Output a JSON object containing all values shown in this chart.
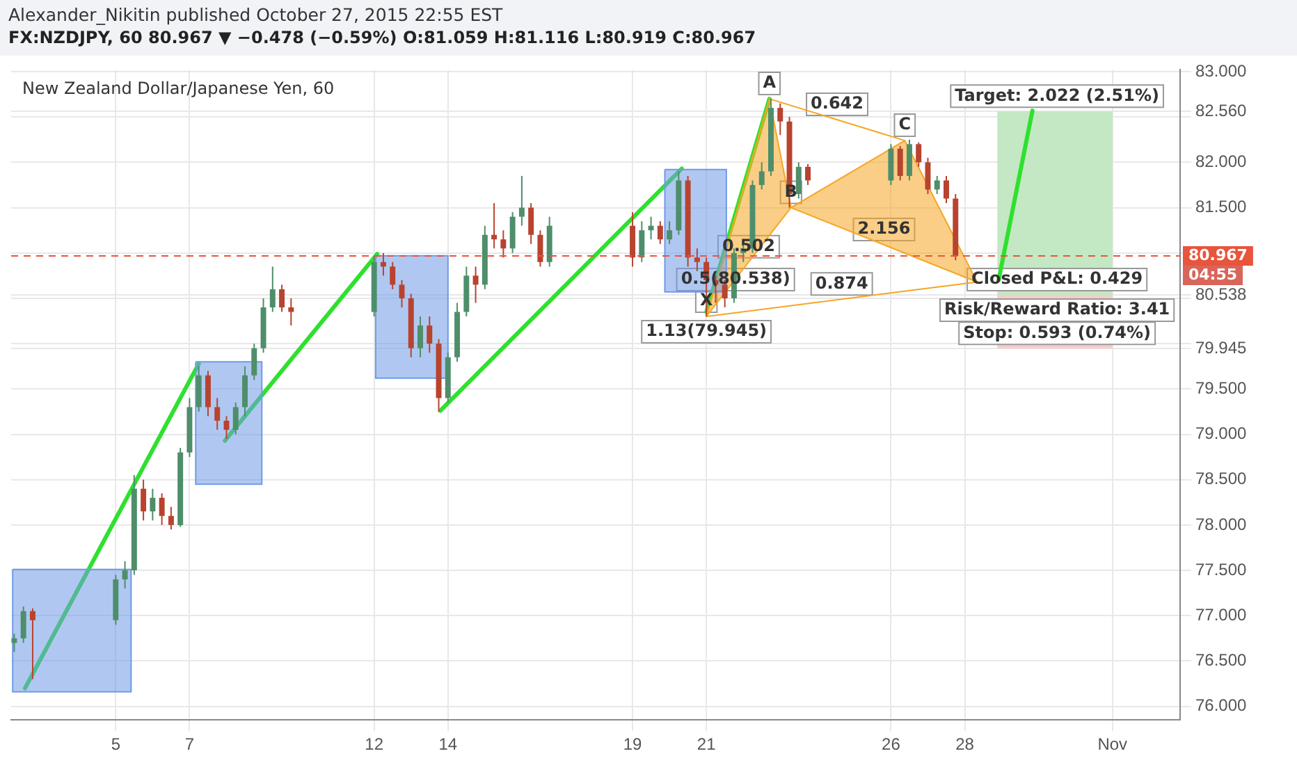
{
  "chart_data": {
    "type": "candlestick",
    "title": "Alexander_Nikitin published October 27, 2015 22:55 EST",
    "subtitle": "FX:NZDJPY, 60  80.967 ▼ −0.478 (−0.59%)  O:81.059 H:81.116 L:80.919 C:80.967",
    "xlim": [
      "2015-10-02T04:00",
      "2015-11-02T20:00"
    ],
    "xticks": [
      {
        "value": "2015-10-05",
        "label": "5"
      },
      {
        "value": "2015-10-07",
        "label": "7"
      },
      {
        "value": "2015-10-12",
        "label": "12"
      },
      {
        "value": "2015-10-14",
        "label": "14"
      },
      {
        "value": "2015-10-19",
        "label": "19"
      },
      {
        "value": "2015-10-21",
        "label": "21"
      },
      {
        "value": "2015-10-26",
        "label": "26"
      },
      {
        "value": "2015-10-28",
        "label": "28"
      },
      {
        "value": "2015-11-01",
        "label": "Nov"
      }
    ],
    "ylim": [
      75.85,
      83.02
    ],
    "yticks": [
      {
        "value": 76,
        "label": "76.000"
      },
      {
        "value": 76.5,
        "label": "76.500"
      },
      {
        "value": 77,
        "label": "77.000"
      },
      {
        "value": 77.5,
        "label": "77.500"
      },
      {
        "value": 78,
        "label": "78.000"
      },
      {
        "value": 78.5,
        "label": "78.500"
      },
      {
        "value": 79,
        "label": "79.000"
      },
      {
        "value": 79.5,
        "label": "79.500"
      },
      {
        "value": 79.945,
        "label": "79.945"
      },
      {
        "value": 80,
        "label": null
      },
      {
        "value": 80.5,
        "label": null
      },
      {
        "value": 80.538,
        "label": "80.538"
      },
      {
        "value": 81,
        "label": null
      },
      {
        "value": 81.5,
        "label": "81.500"
      },
      {
        "value": 82,
        "label": "82.000"
      },
      {
        "value": 82.5,
        "label": null
      },
      {
        "value": 82.56,
        "label": "82.560"
      },
      {
        "value": 83,
        "label": "83.000"
      }
    ],
    "grid": true,
    "series": [
      {
        "type": "candlestick",
        "x": [
          "2015-10-02T06:00",
          "2015-10-02T12:00",
          "2015-10-02T18:00",
          "2015-10-05T00:00",
          "2015-10-05T06:00",
          "2015-10-05T12:00",
          "2015-10-05T18:00",
          "2015-10-06T00:00",
          "2015-10-06T06:00",
          "2015-10-06T12:00",
          "2015-10-06T18:00",
          "2015-10-07T00:00",
          "2015-10-07T06:00",
          "2015-10-07T12:00",
          "2015-10-07T18:00",
          "2015-10-08T00:00",
          "2015-10-08T06:00",
          "2015-10-08T12:00",
          "2015-10-08T18:00",
          "2015-10-09T00:00",
          "2015-10-09T06:00",
          "2015-10-09T12:00",
          "2015-10-09T18:00",
          "2015-10-12T00:00",
          "2015-10-12T06:00",
          "2015-10-12T12:00",
          "2015-10-12T18:00",
          "2015-10-13T00:00",
          "2015-10-13T06:00",
          "2015-10-13T12:00",
          "2015-10-13T18:00",
          "2015-10-14T00:00",
          "2015-10-14T06:00",
          "2015-10-14T12:00",
          "2015-10-14T18:00",
          "2015-10-15T00:00",
          "2015-10-15T06:00",
          "2015-10-15T12:00",
          "2015-10-15T18:00",
          "2015-10-16T00:00",
          "2015-10-16T06:00",
          "2015-10-16T12:00",
          "2015-10-16T18:00",
          "2015-10-19T00:00",
          "2015-10-19T06:00",
          "2015-10-19T12:00",
          "2015-10-19T18:00",
          "2015-10-20T00:00",
          "2015-10-20T06:00",
          "2015-10-20T12:00",
          "2015-10-20T18:00",
          "2015-10-21T00:00",
          "2015-10-21T06:00",
          "2015-10-21T12:00",
          "2015-10-21T18:00",
          "2015-10-22T00:00",
          "2015-10-22T06:00",
          "2015-10-22T12:00",
          "2015-10-22T18:00",
          "2015-10-23T00:00",
          "2015-10-23T06:00",
          "2015-10-23T12:00",
          "2015-10-23T18:00",
          "2015-10-26T00:00",
          "2015-10-26T06:00",
          "2015-10-26T12:00",
          "2015-10-26T18:00",
          "2015-10-27T00:00",
          "2015-10-27T06:00",
          "2015-10-27T12:00",
          "2015-10-27T18:00"
        ],
        "ohlc": [
          [
            76.7,
            76.8,
            76.6,
            76.75
          ],
          [
            76.75,
            77.1,
            76.7,
            77.05
          ],
          [
            77.05,
            77.08,
            76.3,
            76.95
          ],
          [
            76.95,
            77.45,
            76.9,
            77.4
          ],
          [
            77.4,
            77.6,
            77.3,
            77.5
          ],
          [
            77.5,
            78.55,
            77.45,
            78.4
          ],
          [
            78.4,
            78.5,
            78.05,
            78.15
          ],
          [
            78.15,
            78.4,
            78.05,
            78.3
          ],
          [
            78.3,
            78.35,
            78.0,
            78.1
          ],
          [
            78.1,
            78.2,
            77.95,
            78.0
          ],
          [
            78.0,
            78.85,
            77.98,
            78.8
          ],
          [
            78.8,
            79.4,
            78.75,
            79.3
          ],
          [
            79.3,
            79.75,
            79.25,
            79.65
          ],
          [
            79.65,
            79.7,
            79.2,
            79.3
          ],
          [
            79.3,
            79.4,
            79.05,
            79.15
          ],
          [
            79.15,
            79.2,
            78.95,
            79.05
          ],
          [
            79.05,
            79.35,
            79.0,
            79.3
          ],
          [
            79.3,
            79.75,
            79.2,
            79.65
          ],
          [
            79.65,
            80.0,
            79.6,
            79.95
          ],
          [
            79.95,
            80.5,
            79.9,
            80.4
          ],
          [
            80.4,
            80.85,
            80.35,
            80.6
          ],
          [
            80.6,
            80.65,
            80.35,
            80.4
          ],
          [
            80.4,
            80.5,
            80.2,
            80.35
          ],
          [
            80.35,
            80.97,
            80.3,
            80.9
          ],
          [
            80.9,
            81.0,
            80.75,
            80.85
          ],
          [
            80.85,
            80.9,
            80.6,
            80.65
          ],
          [
            80.65,
            80.7,
            80.4,
            80.5
          ],
          [
            80.5,
            80.55,
            79.85,
            79.95
          ],
          [
            79.95,
            80.3,
            79.85,
            80.2
          ],
          [
            80.2,
            80.3,
            79.9,
            80.0
          ],
          [
            80.0,
            80.05,
            79.25,
            79.4
          ],
          [
            79.4,
            79.9,
            79.35,
            79.85
          ],
          [
            79.85,
            80.45,
            79.8,
            80.35
          ],
          [
            80.35,
            80.85,
            80.3,
            80.75
          ],
          [
            80.75,
            80.85,
            80.45,
            80.65
          ],
          [
            80.65,
            81.3,
            80.6,
            81.2
          ],
          [
            81.2,
            81.55,
            81.05,
            81.15
          ],
          [
            81.15,
            81.25,
            80.95,
            81.05
          ],
          [
            81.05,
            81.45,
            81.0,
            81.4
          ],
          [
            81.4,
            81.85,
            81.3,
            81.5
          ],
          [
            81.5,
            81.55,
            81.1,
            81.2
          ],
          [
            81.2,
            81.25,
            80.85,
            80.9
          ],
          [
            80.9,
            81.4,
            80.85,
            81.3
          ],
          [
            81.3,
            81.45,
            80.85,
            80.95
          ],
          [
            80.95,
            81.35,
            80.9,
            81.25
          ],
          [
            81.25,
            81.4,
            81.15,
            81.3
          ],
          [
            81.3,
            81.35,
            81.1,
            81.15
          ],
          [
            81.15,
            81.35,
            81.1,
            81.25
          ],
          [
            81.25,
            81.9,
            81.2,
            81.8
          ],
          [
            81.8,
            81.85,
            80.85,
            80.95
          ],
          [
            80.95,
            81.05,
            80.8,
            80.9
          ],
          [
            80.9,
            80.95,
            80.3,
            80.7
          ],
          [
            80.7,
            80.75,
            80.45,
            80.65
          ],
          [
            80.65,
            80.7,
            80.4,
            80.5
          ],
          [
            80.5,
            81.05,
            80.45,
            81.0
          ],
          [
            81.0,
            81.1,
            80.9,
            81.05
          ],
          [
            81.05,
            81.8,
            81.0,
            81.75
          ],
          [
            81.75,
            82.0,
            81.7,
            81.9
          ],
          [
            81.9,
            82.7,
            81.85,
            82.6
          ],
          [
            82.6,
            82.65,
            82.3,
            82.45
          ],
          [
            82.45,
            82.5,
            81.5,
            81.65
          ],
          [
            81.65,
            82.0,
            81.6,
            81.95
          ],
          [
            81.95,
            81.98,
            81.75,
            81.8
          ],
          [
            81.8,
            82.2,
            81.75,
            82.15
          ],
          [
            82.15,
            82.18,
            81.8,
            81.85
          ],
          [
            81.85,
            82.25,
            81.8,
            82.2
          ],
          [
            82.2,
            82.22,
            81.95,
            82.0
          ],
          [
            82.0,
            82.05,
            81.65,
            81.7
          ],
          [
            81.7,
            81.85,
            81.65,
            81.8
          ],
          [
            81.8,
            81.85,
            81.55,
            81.6
          ],
          [
            81.6,
            81.65,
            80.92,
            80.967
          ]
        ],
        "colors": [
          "#4e8e6b",
          "#4e8e6b",
          "#b8432f",
          "#4e8e6b",
          "#4e8e6b",
          "#4e8e6b",
          "#b8432f",
          "#4e8e6b",
          "#b8432f",
          "#b8432f",
          "#4e8e6b",
          "#4e8e6b",
          "#4e8e6b",
          "#b8432f",
          "#b8432f",
          "#b8432f",
          "#4e8e6b",
          "#4e8e6b",
          "#4e8e6b",
          "#4e8e6b",
          "#4e8e6b",
          "#b8432f",
          "#b8432f",
          "#4e8e6b",
          "#b8432f",
          "#b8432f",
          "#b8432f",
          "#b8432f",
          "#4e8e6b",
          "#b8432f",
          "#b8432f",
          "#4e8e6b",
          "#4e8e6b",
          "#4e8e6b",
          "#b8432f",
          "#4e8e6b",
          "#b8432f",
          "#b8432f",
          "#4e8e6b",
          "#4e8e6b",
          "#b8432f",
          "#b8432f",
          "#4e8e6b",
          "#b8432f",
          "#4e8e6b",
          "#4e8e6b",
          "#b8432f",
          "#4e8e6b",
          "#4e8e6b",
          "#b8432f",
          "#b8432f",
          "#b8432f",
          "#b8432f",
          "#b8432f",
          "#4e8e6b",
          "#4e8e6b",
          "#4e8e6b",
          "#4e8e6b",
          "#4e8e6b",
          "#b8432f",
          "#b8432f",
          "#4e8e6b",
          "#b8432f",
          "#4e8e6b",
          "#b8432f",
          "#4e8e6b",
          "#b8432f",
          "#b8432f",
          "#4e8e6b",
          "#b8432f",
          "#b8432f"
        ]
      },
      {
        "type": "area",
        "color": "#6f9be6",
        "x": [
          "2015-10-02T05:00",
          "2015-10-05T10:00",
          "2015-10-05T10:00",
          "2015-10-02T05:00",
          "2015-10-02T05:00"
        ],
        "values": [
          77.51,
          77.51,
          76.16,
          76.16,
          77.51
        ]
      },
      {
        "type": "area",
        "color": "#6f9be6",
        "x": [
          "2015-10-07T04:00",
          "2015-10-08T23:00",
          "2015-10-08T23:00",
          "2015-10-07T04:00",
          "2015-10-07T04:00"
        ],
        "values": [
          79.8,
          79.8,
          78.45,
          78.45,
          79.8
        ]
      },
      {
        "type": "area",
        "color": "#6f9be6",
        "x": [
          "2015-10-12T01:00",
          "2015-10-14T00:00",
          "2015-10-14T00:00",
          "2015-10-12T01:00",
          "2015-10-12T01:00"
        ],
        "values": [
          80.97,
          80.97,
          79.62,
          79.62,
          80.97
        ]
      },
      {
        "type": "area",
        "color": "#6f9be6",
        "x": [
          "2015-10-19T21:00",
          "2015-10-21T13:00",
          "2015-10-21T13:00",
          "2015-10-19T21:00",
          "2015-10-19T21:00"
        ],
        "values": [
          81.92,
          81.92,
          80.57,
          80.57,
          81.92
        ]
      },
      {
        "type": "area",
        "color": "#f5a623",
        "x": [
          "2015-10-21T00:00",
          "2015-10-22T17:00",
          "2015-10-23T07:00",
          "2015-10-21T00:00"
        ],
        "values": [
          80.3,
          82.7,
          81.5,
          80.3
        ]
      },
      {
        "type": "area",
        "color": "#f5a623",
        "x": [
          "2015-10-23T07:00",
          "2015-10-26T09:00",
          "2015-10-28T08:00",
          "2015-10-23T07:00"
        ],
        "values": [
          81.5,
          82.24,
          80.68,
          81.5
        ]
      },
      {
        "type": "line",
        "color": "#f5a623",
        "marker": "none",
        "x": [
          "2015-10-22T17:00",
          "2015-10-26T09:00"
        ],
        "values": [
          82.7,
          82.24
        ]
      },
      {
        "type": "line",
        "color": "#f5a623",
        "marker": "none",
        "x": [
          "2015-10-21T00:00",
          "2015-10-28T08:00"
        ],
        "values": [
          80.3,
          80.68
        ]
      },
      {
        "type": "line",
        "color": "#2fe02f",
        "x": [
          "2015-10-02T13:00",
          "2015-10-07T06:00"
        ],
        "values": [
          76.2,
          79.78
        ]
      },
      {
        "type": "line",
        "color": "#2fe02f",
        "x": [
          "2015-10-07T23:00",
          "2015-10-12T02:00"
        ],
        "values": [
          78.93,
          80.99
        ]
      },
      {
        "type": "line",
        "color": "#2fe02f",
        "x": [
          "2015-10-13T19:00",
          "2015-10-20T08:00"
        ],
        "values": [
          79.26,
          81.93
        ]
      },
      {
        "type": "line",
        "color": "#2fe02f",
        "x": [
          "2015-10-21T00:00",
          "2015-10-22T17:00"
        ],
        "values": [
          80.35,
          82.7
        ]
      },
      {
        "type": "line",
        "color": "#2fe02f",
        "x": [
          "2015-10-28T22:00",
          "2015-10-29T20:00"
        ],
        "values": [
          80.7,
          82.57
        ]
      }
    ],
    "ref_lines": [
      {
        "axis": "y",
        "value": 80.967,
        "label": "80.967",
        "color": "#e8543c",
        "line_style": "dashed"
      }
    ],
    "bands": [
      {
        "axis": "y",
        "from": 80.538,
        "to": 82.56,
        "color": "#c3e8c3"
      },
      {
        "axis": "y",
        "from": 79.945,
        "to": 80.538,
        "color": "#f8cccc"
      }
    ],
    "annotations": [
      "New Zealand Dollar/Japanese Yen, 60",
      {
        "text": "A",
        "x": "2015-10-22T17:00",
        "y": 82.7
      },
      {
        "text": "B",
        "x": "2015-10-23T07:00",
        "y": 81.5
      },
      {
        "text": "C",
        "x": "2015-10-26T09:00",
        "y": 82.24
      },
      {
        "text": "X",
        "x": "2015-10-21T00:00",
        "y": 80.3
      },
      {
        "text": "1.13(79.945)",
        "x": "2015-10-21T00:00",
        "y": 80.3
      },
      {
        "text": "0.642",
        "x": "2015-10-24T13:00",
        "y": 82.47
      },
      {
        "text": "0.502",
        "x": "2015-10-22T03:30",
        "y": 80.9
      },
      {
        "text": "0.5(80.538)",
        "x": "2015-10-21T19:00",
        "y": 80.538
      },
      {
        "text": "2.156",
        "x": "2015-10-25T19:30",
        "y": 81.09
      },
      {
        "text": "0.874",
        "x": "2015-10-24T16:00",
        "y": 80.49
      },
      {
        "text": "Target: 2.022 (2.51%)",
        "x": "2015-10-30T12:00",
        "y": 82.56
      },
      {
        "text": "Closed P&L: 0.429",
        "x": "2015-10-30T12:00",
        "y": 80.538
      },
      {
        "text": "Risk/Reward Ratio: 3.41",
        "x": "2015-10-30T12:00",
        "y": 80.538
      },
      {
        "text": "Stop: 0.593 (0.74%)",
        "x": "2015-10-30T12:00",
        "y": 79.945
      },
      "04:55"
    ]
  }
}
